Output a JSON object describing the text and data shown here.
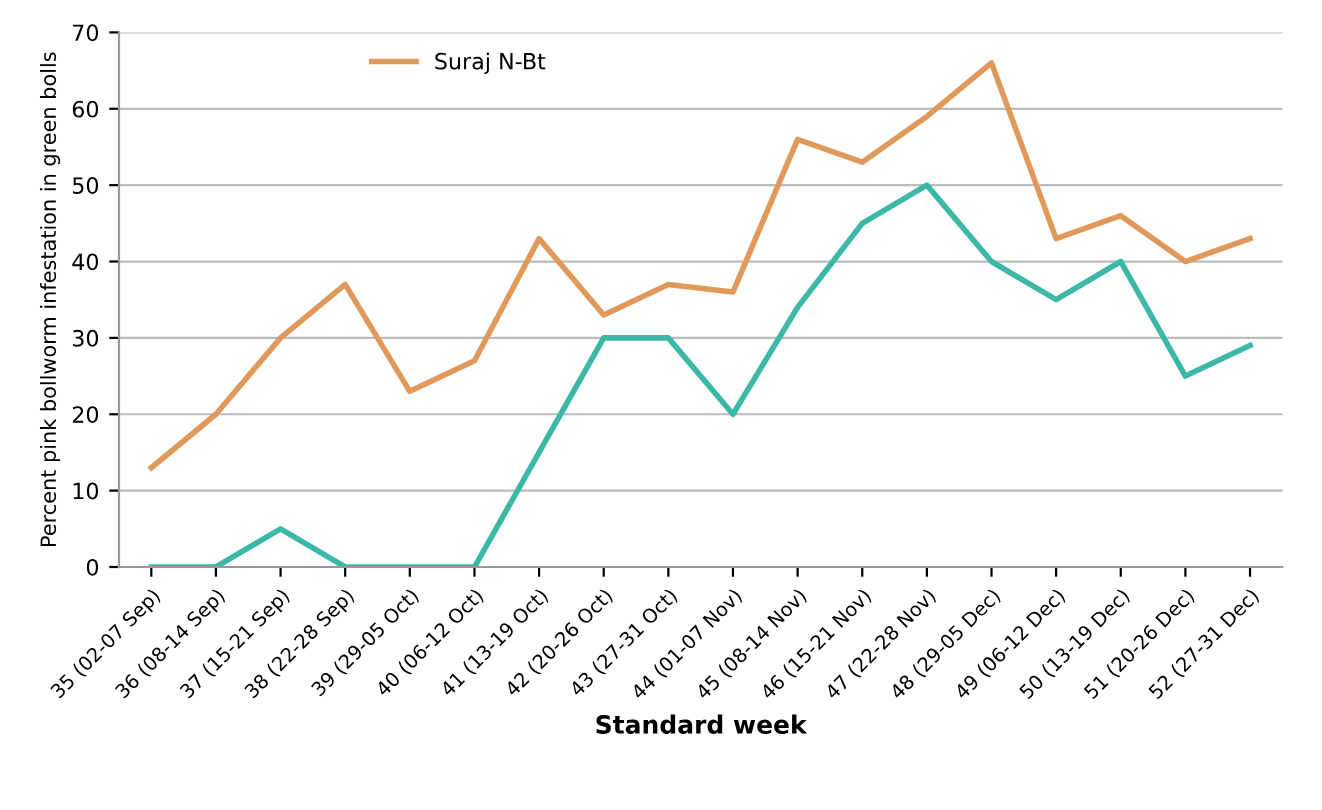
{
  "chart_data": {
    "type": "line",
    "xlabel": "Standard week",
    "ylabel": "Percent pink bollworm infestation in green bolls",
    "categories": [
      "35 (02-07 Sep)",
      "36 (08-14 Sep)",
      "37 (15-21 Sep)",
      "38 (22-28 Sep)",
      "39 (29-05 Oct)",
      "40 (06-12 Oct)",
      "41 (13-19 Oct)",
      "42 (20-26 Oct)",
      "43 (27-31 Oct)",
      "44 (01-07 Nov)",
      "45 (08-14 Nov)",
      "46 (15-21 Nov)",
      "47 (22-28 Nov)",
      "48 (29-05 Dec)",
      "49 (06-12 Dec)",
      "50 (13-19 Dec)",
      "51 (20-26 Dec)",
      "52 (27-31 Dec)"
    ],
    "series": [
      {
        "color": "#3cb8a8",
        "values": [
          0,
          0,
          5,
          0,
          0,
          0,
          15,
          30,
          30,
          20,
          34,
          45,
          50,
          40,
          35,
          40,
          25,
          29
        ]
      },
      {
        "name": "Suraj N-Bt",
        "color": "#e0995a",
        "values": [
          13,
          20,
          30,
          37,
          23,
          27,
          43,
          33,
          37,
          36,
          56,
          53,
          59,
          66,
          43,
          46,
          40,
          43
        ]
      }
    ],
    "ylim": [
      0,
      70
    ],
    "yticks": [
      0,
      10,
      20,
      30,
      40,
      50,
      60,
      70
    ],
    "grid": "y",
    "legend": "top left"
  }
}
